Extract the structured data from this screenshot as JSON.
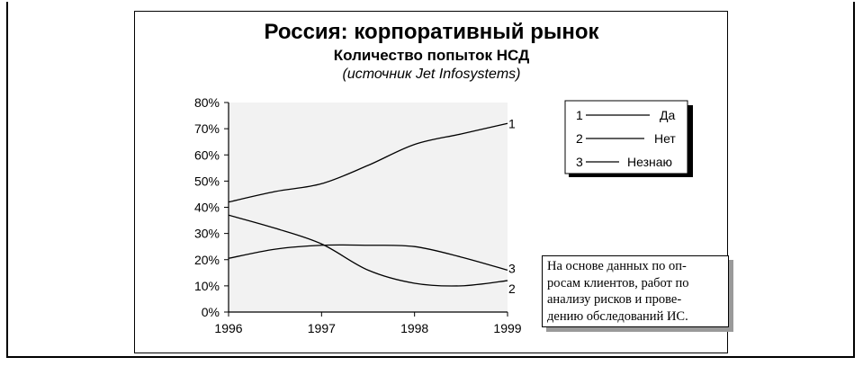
{
  "chart_data": {
    "type": "line",
    "title": "Россия: корпоративный рынок",
    "subtitle": "Количество попыток НСД",
    "source": "(источник Jet Infosystems)",
    "x": [
      1996,
      1996.5,
      1997,
      1997.5,
      1998,
      1998.5,
      1999
    ],
    "x_ticks": [
      "1996",
      "1997",
      "1998",
      "1999"
    ],
    "y_ticks": [
      "0%",
      "10%",
      "20%",
      "30%",
      "40%",
      "50%",
      "60%",
      "70%",
      "80%"
    ],
    "ylim": [
      0,
      80
    ],
    "series": [
      {
        "id": "1",
        "name": "Да",
        "values": [
          42,
          46,
          49,
          56,
          64,
          68,
          72
        ]
      },
      {
        "id": "2",
        "name": "Нет",
        "values": [
          37,
          32,
          26,
          16,
          11,
          10,
          12
        ]
      },
      {
        "id": "3",
        "name": "Незнаю",
        "values": [
          20.5,
          24,
          25.5,
          25.5,
          25,
          21,
          16
        ]
      }
    ],
    "legend_position": "top-right",
    "grid": false
  },
  "note": {
    "lines": [
      "На основе данных по оп-",
      "росам клиентов, работ по",
      "анализу рисков и прове-",
      "дению обследований ИС."
    ]
  }
}
